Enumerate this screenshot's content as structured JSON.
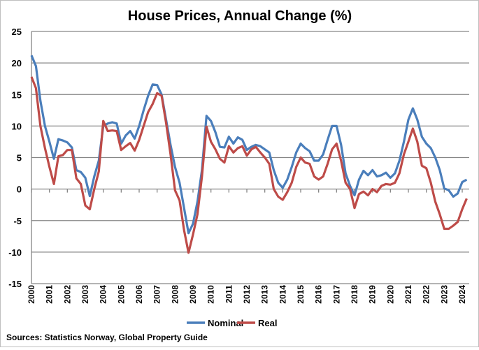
{
  "chart_data": {
    "type": "line",
    "title": "House Prices, Annual Change (%)",
    "source": "Sources: Statistics Norway, Global Property Guide",
    "xlabel": "",
    "ylabel": "",
    "ylim": [
      -15,
      25
    ],
    "yticks": [
      -15,
      -10,
      -5,
      0,
      5,
      10,
      15,
      20,
      25
    ],
    "xticks": [
      "2000",
      "2001",
      "2002",
      "2003",
      "2004",
      "2005",
      "2006",
      "2007",
      "2008",
      "2009",
      "2010",
      "2011",
      "2012",
      "2013",
      "2014",
      "2015",
      "2016",
      "2017",
      "2018",
      "2019",
      "2020",
      "2021",
      "2022",
      "2023",
      "2024"
    ],
    "frequency": "quarterly",
    "x_start": "2000 Q1",
    "grid": "horizontal",
    "legend": "bottom",
    "series": [
      {
        "name": "Nominal",
        "color": "#4a7ebb",
        "values": [
          21.2,
          19.5,
          14,
          10,
          7.5,
          4.8,
          7.9,
          7.7,
          7.4,
          6.6,
          3,
          2.7,
          1.8,
          -1.1,
          2,
          4.5,
          10,
          10.4,
          10.6,
          10.4,
          7.2,
          8.5,
          9.2,
          8,
          10,
          12.5,
          14.8,
          16.6,
          16.5,
          15,
          11,
          7,
          3.5,
          1,
          -3,
          -7,
          -5.5,
          -2,
          3,
          11.6,
          10.8,
          9,
          6.7,
          6.6,
          8.3,
          7.2,
          8.2,
          7.8,
          6.2,
          6.7,
          7,
          6.8,
          6.3,
          5.8,
          3,
          1,
          0.2,
          1.5,
          3.5,
          5.8,
          7.2,
          6.5,
          6,
          4.5,
          4.5,
          5.5,
          7.8,
          10,
          10,
          7,
          2.5,
          0.5,
          -1,
          1.5,
          2.9,
          2.2,
          3,
          2,
          2.2,
          2.6,
          1.8,
          2.5,
          4.5,
          7.5,
          11,
          12.8,
          11,
          8.3,
          7.2,
          6.5,
          5,
          3,
          0.1,
          -0.2,
          -1.2,
          -0.7,
          1.1,
          1.5
        ]
      },
      {
        "name": "Real",
        "color": "#be4b48",
        "values": [
          17.8,
          16,
          10,
          6.5,
          3.5,
          0.8,
          5.2,
          5.4,
          6.2,
          6.2,
          1.7,
          0.8,
          -2.6,
          -3.2,
          0,
          2.8,
          10.8,
          9.2,
          9.3,
          9.2,
          6.2,
          6.8,
          7.3,
          6.1,
          7.8,
          10,
          12.2,
          13.5,
          15.2,
          14.8,
          10.5,
          5.5,
          -0.2,
          -1.8,
          -6.5,
          -10.1,
          -7.2,
          -4,
          2,
          9.9,
          7.5,
          6.3,
          4.8,
          4.2,
          6.8,
          5.8,
          6.5,
          6.8,
          5.3,
          6.3,
          6.7,
          5.8,
          5,
          4,
          0,
          -1.2,
          -1.7,
          -0.5,
          1,
          3.5,
          5,
          4.2,
          4,
          2,
          1.5,
          2,
          4,
          6.3,
          7.2,
          4.5,
          1,
          0,
          -3,
          -0.8,
          -0.4,
          -1,
          0,
          -0.5,
          0.5,
          0.8,
          0.7,
          1,
          2.5,
          5.5,
          7.5,
          9.6,
          7.5,
          3.7,
          3.3,
          1,
          -2,
          -4,
          -6.3,
          -6.3,
          -5.8,
          -5.2,
          -3.2,
          -1.5
        ]
      }
    ]
  }
}
